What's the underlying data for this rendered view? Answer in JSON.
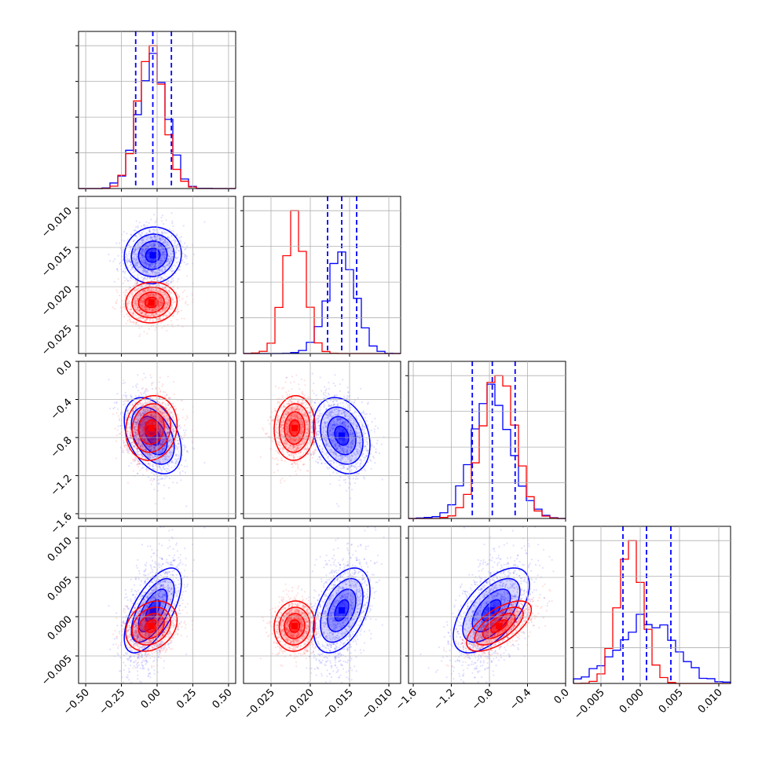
{
  "chart_data": {
    "type": "corner",
    "series": [
      {
        "name": "",
        "color": "#0000ff",
        "mean": [
          -0.03,
          -0.016,
          -0.78,
          0.0008
        ],
        "std": [
          0.1,
          0.0018,
          0.2,
          0.0027
        ],
        "corr": [
          [
            1,
            0.05,
            -0.4,
            0.65
          ],
          [
            0.05,
            1,
            -0.25,
            0.45
          ],
          [
            -0.4,
            -0.25,
            1,
            0.6
          ],
          [
            0.65,
            0.45,
            0.6,
            1
          ]
        ],
        "quantiles": [
          [
            -0.15,
            -0.03,
            0.1
          ],
          [
            -0.0178,
            -0.016,
            -0.0141
          ],
          [
            -0.98,
            -0.77,
            -0.53
          ],
          [
            -0.0022,
            0.0008,
            0.0039
          ]
        ]
      },
      {
        "name": "",
        "color": "#ff0000",
        "mean": [
          -0.04,
          -0.022,
          -0.7,
          -0.0012
        ],
        "std": [
          0.09,
          0.0013,
          0.17,
          0.0016
        ],
        "corr": [
          [
            1,
            0.05,
            0.1,
            0.25
          ],
          [
            0.05,
            1,
            0.05,
            0.05
          ],
          [
            0.1,
            0.05,
            1,
            0.65
          ],
          [
            0.25,
            0.05,
            0.65,
            1
          ]
        ]
      }
    ],
    "parameters": [
      {
        "range": [
          -0.55,
          0.55
        ],
        "ticks": [
          -0.5,
          -0.25,
          0.0,
          0.25,
          0.5
        ],
        "tick_labels": [
          "−0.50",
          "−0.25",
          "0.00",
          "0.25",
          "0.50"
        ]
      },
      {
        "range": [
          -0.0285,
          -0.0085
        ],
        "ticks": [
          -0.025,
          -0.02,
          -0.015,
          -0.01
        ],
        "tick_labels": [
          "−0.025",
          "−0.020",
          "−0.015",
          "−0.010"
        ]
      },
      {
        "range": [
          -1.65,
          0.0
        ],
        "ticks": [
          -1.6,
          -1.2,
          -0.8,
          -0.4,
          0.0
        ],
        "tick_labels": [
          "−1.6",
          "−1.2",
          "−0.8",
          "−0.4",
          "0.0"
        ]
      },
      {
        "range": [
          -0.0085,
          0.0115
        ],
        "ticks": [
          -0.005,
          0.0,
          0.005,
          0.01
        ],
        "tick_labels": [
          "−0.005",
          "0.000",
          "0.005",
          "0.010"
        ]
      }
    ],
    "grid": true,
    "contour_levels": [
      0.118,
      0.393,
      0.675,
      0.865
    ],
    "xlabel": "",
    "ylabel": "",
    "title": ""
  }
}
